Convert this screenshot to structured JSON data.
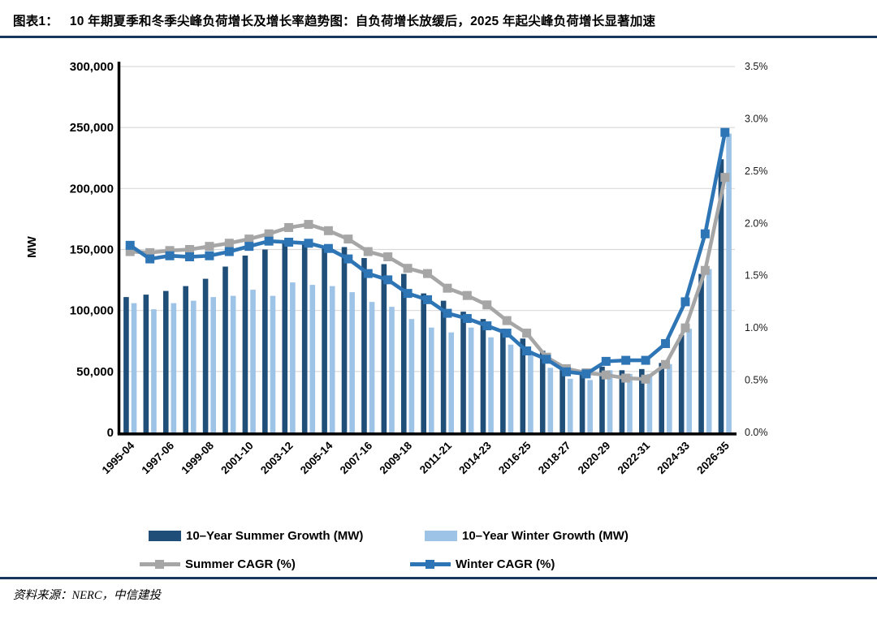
{
  "figure": {
    "label": "图表1：",
    "title": "10 年期夏季和冬季尖峰负荷增长及增长率趋势图：自负荷增长放缓后，2025 年起尖峰负荷增长显著加速",
    "source": "资料来源：NERC，中信建投"
  },
  "colors": {
    "summer_bar": "#1f4e79",
    "winter_bar": "#9dc3e6",
    "summer_line": "#a6a6a6",
    "winter_line": "#2e75b6",
    "rule": "#16365c",
    "gridline": "#d9d9d9",
    "axis": "#000000"
  },
  "chart_data": {
    "type": "bar",
    "subtype": "bar-line-combo",
    "grid": true,
    "legend_position": "bottom",
    "categories": [
      "1995-04",
      "",
      "1997-06",
      "",
      "1999-08",
      "",
      "2001-10",
      "",
      "2003-12",
      "",
      "2005-14",
      "",
      "2007-16",
      "",
      "2009-18",
      "",
      "2011-21",
      "",
      "2014-23",
      "",
      "2016-25",
      "",
      "2018-27",
      "",
      "2020-29",
      "",
      "2022-31",
      "",
      "2024-33",
      "",
      "2026-35"
    ],
    "x_tick_labels": [
      "1995-04",
      "1997-06",
      "1999-08",
      "2001-10",
      "2003-12",
      "2005-14",
      "2007-16",
      "2009-18",
      "2011-21",
      "2014-23",
      "2016-25",
      "2018-27",
      "2020-29",
      "2022-31",
      "2024-33",
      "2026-35"
    ],
    "left_axis": {
      "label": "MW",
      "min": 0,
      "max": 300000,
      "step": 50000,
      "tick_labels": [
        "0",
        "50,000",
        "100,000",
        "150,000",
        "200,000",
        "250,000",
        "300,000"
      ]
    },
    "right_axis": {
      "min": 0,
      "max": 3.5,
      "step": 0.5,
      "tick_labels": [
        "0.0%",
        "0.5%",
        "1.0%",
        "1.5%",
        "2.0%",
        "2.5%",
        "3.0%",
        "3.5%"
      ]
    },
    "series": [
      {
        "name": "10–Year Summer Growth (MW)",
        "type": "bar",
        "axis": "left",
        "color": "#1f4e79",
        "values": [
          111000,
          113000,
          116000,
          120000,
          126000,
          136000,
          145000,
          150000,
          156000,
          154000,
          152000,
          152000,
          143000,
          138000,
          130000,
          114000,
          108000,
          99000,
          93000,
          85000,
          77000,
          67000,
          52000,
          49000,
          54000,
          51000,
          52000,
          57000,
          80000,
          130000,
          224000
        ]
      },
      {
        "name": "10–Year Winter Growth (MW)",
        "type": "bar",
        "axis": "left",
        "color": "#9dc3e6",
        "values": [
          106000,
          101000,
          106000,
          108000,
          111000,
          112000,
          117000,
          112000,
          123000,
          121000,
          120000,
          115000,
          107000,
          103000,
          93000,
          86000,
          82000,
          86000,
          78000,
          72000,
          67000,
          53000,
          44000,
          43000,
          51000,
          48000,
          48000,
          56000,
          85000,
          134000,
          245000
        ]
      },
      {
        "name": "Summer CAGR (%)",
        "type": "line",
        "axis": "right",
        "color": "#a6a6a6",
        "values": [
          1.73,
          1.72,
          1.74,
          1.75,
          1.78,
          1.81,
          1.85,
          1.9,
          1.96,
          1.99,
          1.93,
          1.85,
          1.73,
          1.68,
          1.57,
          1.52,
          1.38,
          1.31,
          1.22,
          1.07,
          0.95,
          0.72,
          0.61,
          0.57,
          0.55,
          0.52,
          0.51,
          0.65,
          1.0,
          1.55,
          2.44
        ]
      },
      {
        "name": "Winter CAGR (%)",
        "type": "line",
        "axis": "right",
        "color": "#2e75b6",
        "values": [
          1.79,
          1.66,
          1.69,
          1.68,
          1.69,
          1.73,
          1.78,
          1.83,
          1.82,
          1.81,
          1.76,
          1.66,
          1.52,
          1.46,
          1.33,
          1.27,
          1.14,
          1.09,
          1.02,
          0.95,
          0.78,
          0.7,
          0.58,
          0.56,
          0.68,
          0.69,
          0.69,
          0.85,
          1.25,
          1.9,
          2.87
        ]
      }
    ]
  }
}
